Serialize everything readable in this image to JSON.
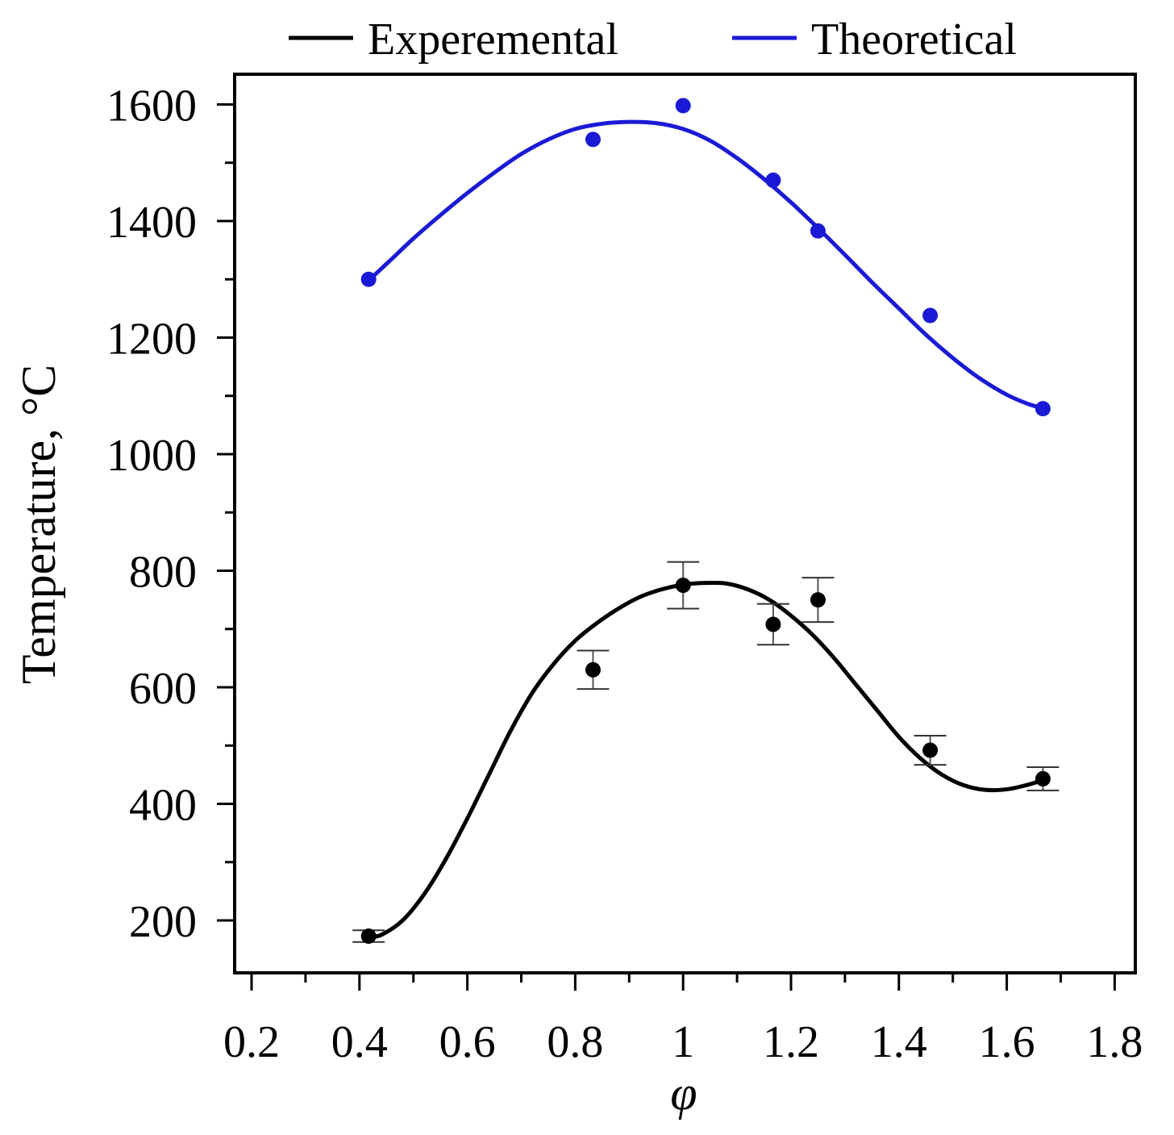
{
  "chart_data": {
    "type": "line",
    "title": "",
    "xlabel": "φ",
    "ylabel": "Temperature, °C",
    "xlim": [
      0.17,
      1.85
    ],
    "ylim": [
      110,
      1650
    ],
    "xticks": [
      0.2,
      0.4,
      0.6,
      0.8,
      1.0,
      1.2,
      1.4,
      1.6,
      1.8
    ],
    "xtick_labels": [
      "0.2",
      "0.4",
      "0.6",
      "0.8",
      "1",
      "1.2",
      "1.4",
      "1.6",
      "1.8"
    ],
    "yticks": [
      200,
      400,
      600,
      800,
      1000,
      1200,
      1400,
      1600
    ],
    "ytick_labels": [
      "200",
      "400",
      "600",
      "800",
      "1000",
      "1200",
      "1400",
      "1600"
    ],
    "legend_position": "top",
    "grid": false,
    "series": [
      {
        "name": "Experemental",
        "color": "#000000",
        "points_x": [
          0.417,
          0.833,
          1.0,
          1.167,
          1.25,
          1.458,
          1.667
        ],
        "points_y": [
          173,
          630,
          775,
          708,
          750,
          492,
          443
        ],
        "error": [
          10,
          33,
          40,
          35,
          38,
          25,
          20
        ],
        "curve_x": [
          0.417,
          0.44,
          0.48,
          0.52,
          0.56,
          0.6,
          0.64,
          0.68,
          0.72,
          0.76,
          0.8,
          0.84,
          0.88,
          0.92,
          0.96,
          1.0,
          1.04,
          1.08,
          1.12,
          1.16,
          1.2,
          1.24,
          1.28,
          1.32,
          1.36,
          1.4,
          1.44,
          1.48,
          1.52,
          1.56,
          1.6,
          1.64,
          1.667
        ],
        "curve_y": [
          172,
          175,
          200,
          245,
          305,
          375,
          450,
          525,
          590,
          640,
          680,
          710,
          735,
          755,
          768,
          776,
          779,
          778,
          768,
          750,
          723,
          690,
          650,
          605,
          560,
          515,
          478,
          450,
          432,
          424,
          425,
          433,
          441
        ]
      },
      {
        "name": "Theoretical",
        "color": "#1a1ad6",
        "points_x": [
          0.417,
          0.833,
          1.0,
          1.167,
          1.25,
          1.458,
          1.667
        ],
        "points_y": [
          1300,
          1540,
          1598,
          1470,
          1383,
          1238,
          1078
        ],
        "error": [],
        "curve_x": [
          0.417,
          0.46,
          0.5,
          0.55,
          0.6,
          0.65,
          0.7,
          0.75,
          0.8,
          0.85,
          0.9,
          0.95,
          1.0,
          1.05,
          1.1,
          1.15,
          1.2,
          1.25,
          1.3,
          1.35,
          1.4,
          1.45,
          1.5,
          1.55,
          1.6,
          1.64,
          1.667
        ],
        "curve_y": [
          1298,
          1335,
          1370,
          1410,
          1448,
          1483,
          1515,
          1540,
          1558,
          1567,
          1570,
          1568,
          1558,
          1538,
          1508,
          1472,
          1432,
          1388,
          1342,
          1295,
          1250,
          1205,
          1165,
          1130,
          1102,
          1086,
          1079
        ]
      }
    ]
  }
}
